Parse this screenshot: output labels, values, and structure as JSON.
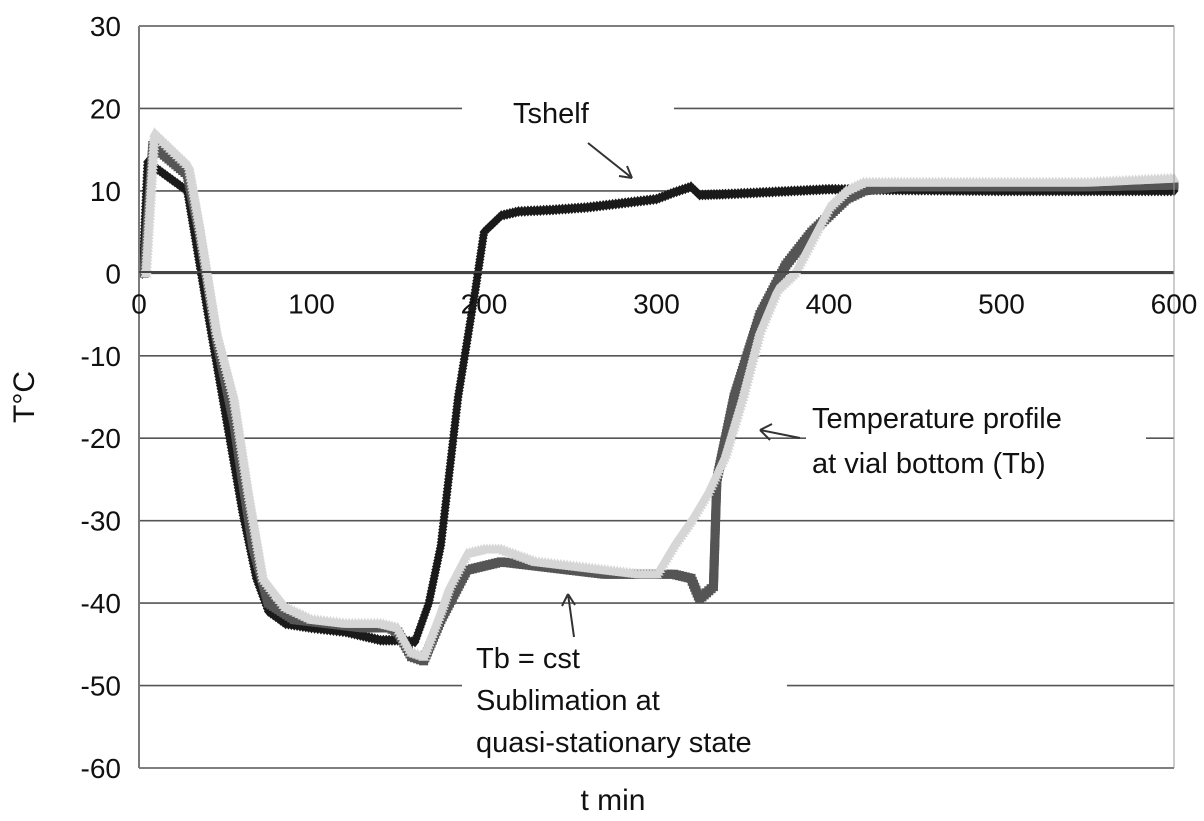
{
  "chart_data": {
    "type": "scatter",
    "xlabel": "t min",
    "ylabel": "T°C",
    "xlim": [
      0,
      600
    ],
    "ylim": [
      -60,
      30
    ],
    "x_ticks": [
      0,
      100,
      200,
      300,
      400,
      500,
      600
    ],
    "y_ticks": [
      30,
      20,
      10,
      0,
      -10,
      -20,
      -30,
      -40,
      -50,
      -60
    ],
    "grid": "horizontal",
    "legend": "none",
    "series": [
      {
        "color": "#1a1a1a",
        "marker": "diamond",
        "points": [
          [
            2,
            0
          ],
          [
            5,
            13.5
          ],
          [
            28,
            10
          ],
          [
            32,
            5
          ],
          [
            40,
            -5
          ],
          [
            50,
            -17
          ],
          [
            60,
            -29
          ],
          [
            68,
            -37
          ],
          [
            75,
            -41
          ],
          [
            85,
            -42.5
          ],
          [
            100,
            -43
          ],
          [
            120,
            -43.5
          ],
          [
            140,
            -44.5
          ],
          [
            150,
            -44.5
          ],
          [
            160,
            -44.7
          ],
          [
            168,
            -40
          ],
          [
            175,
            -33
          ],
          [
            185,
            -15
          ],
          [
            195,
            -2
          ],
          [
            200,
            5
          ],
          [
            205,
            6
          ],
          [
            210,
            7
          ],
          [
            220,
            7.5
          ],
          [
            240,
            7.7
          ],
          [
            260,
            8
          ],
          [
            280,
            8.5
          ],
          [
            300,
            9
          ],
          [
            310,
            9.8
          ],
          [
            320,
            10.5
          ],
          [
            325,
            9.5
          ],
          [
            340,
            9.6
          ],
          [
            360,
            9.8
          ],
          [
            380,
            10
          ],
          [
            400,
            10.2
          ],
          [
            450,
            10.1
          ],
          [
            500,
            10
          ],
          [
            550,
            10
          ],
          [
            600,
            10
          ]
        ]
      },
      {
        "color": "#555555",
        "marker": "square",
        "points": [
          [
            3,
            0
          ],
          [
            8,
            15.5
          ],
          [
            28,
            12
          ],
          [
            35,
            5
          ],
          [
            45,
            -8
          ],
          [
            55,
            -18
          ],
          [
            60,
            -25
          ],
          [
            66,
            -33
          ],
          [
            75,
            -40
          ],
          [
            90,
            -42
          ],
          [
            110,
            -42.5
          ],
          [
            130,
            -43
          ],
          [
            145,
            -43
          ],
          [
            150,
            -43.5
          ],
          [
            158,
            -46.5
          ],
          [
            165,
            -47
          ],
          [
            175,
            -42
          ],
          [
            180,
            -40
          ],
          [
            190,
            -36
          ],
          [
            200,
            -35.5
          ],
          [
            210,
            -35
          ],
          [
            230,
            -35.5
          ],
          [
            250,
            -36
          ],
          [
            270,
            -36.5
          ],
          [
            290,
            -36.5
          ],
          [
            310,
            -36.5
          ],
          [
            320,
            -37
          ],
          [
            325,
            -39.5
          ],
          [
            333,
            -38
          ],
          [
            335,
            -25
          ],
          [
            345,
            -15
          ],
          [
            360,
            -5
          ],
          [
            375,
            1
          ],
          [
            390,
            5
          ],
          [
            400,
            7
          ],
          [
            410,
            9
          ],
          [
            420,
            10
          ],
          [
            440,
            10.5
          ],
          [
            500,
            10.5
          ],
          [
            550,
            10.5
          ],
          [
            600,
            10.7
          ]
        ]
      },
      {
        "color": "#d6d6d6",
        "marker": "triangle",
        "points": [
          [
            4,
            0
          ],
          [
            9,
            17
          ],
          [
            29,
            13
          ],
          [
            35,
            6
          ],
          [
            45,
            -7
          ],
          [
            55,
            -15
          ],
          [
            63,
            -26
          ],
          [
            72,
            -37
          ],
          [
            85,
            -40.5
          ],
          [
            100,
            -42
          ],
          [
            120,
            -42.5
          ],
          [
            140,
            -42.5
          ],
          [
            150,
            -43
          ],
          [
            158,
            -46
          ],
          [
            165,
            -46.5
          ],
          [
            175,
            -41
          ],
          [
            180,
            -38
          ],
          [
            190,
            -34
          ],
          [
            200,
            -33.5
          ],
          [
            210,
            -33.5
          ],
          [
            230,
            -35
          ],
          [
            250,
            -35.5
          ],
          [
            270,
            -36
          ],
          [
            290,
            -36.5
          ],
          [
            300,
            -36.5
          ],
          [
            310,
            -33
          ],
          [
            320,
            -30
          ],
          [
            330,
            -26.5
          ],
          [
            340,
            -22
          ],
          [
            350,
            -15
          ],
          [
            360,
            -7
          ],
          [
            370,
            -2
          ],
          [
            380,
            0
          ],
          [
            390,
            4
          ],
          [
            400,
            8
          ],
          [
            410,
            10
          ],
          [
            420,
            11
          ],
          [
            440,
            11
          ],
          [
            500,
            11
          ],
          [
            550,
            11
          ],
          [
            600,
            11.5
          ]
        ]
      }
    ],
    "annotations": [
      {
        "text": "Tshelf"
      },
      {
        "text": "Temperature profile"
      },
      {
        "text": "at vial bottom (Tb)"
      },
      {
        "text": "Tb = cst"
      },
      {
        "text": "Sublimation at"
      },
      {
        "text": "quasi-stationary state"
      }
    ]
  }
}
